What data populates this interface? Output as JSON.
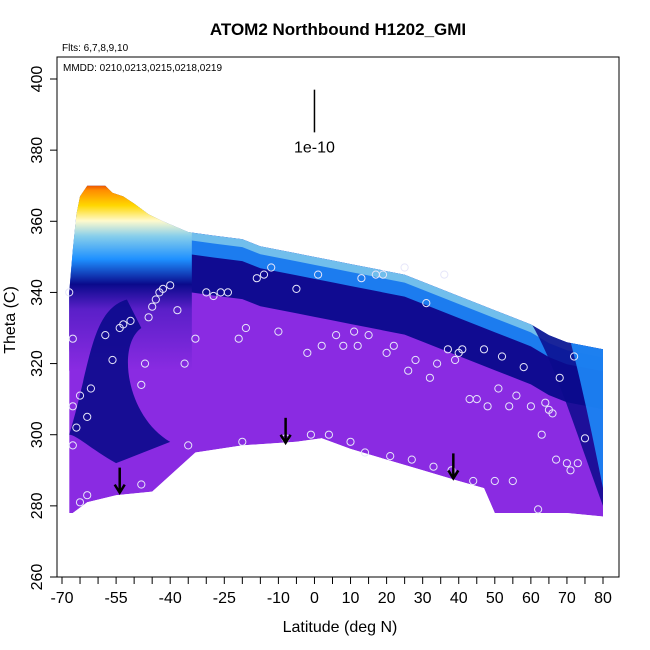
{
  "chart_data": {
    "type": "scatter",
    "title": "ATOM2 Northbound H1202_GMI",
    "flights_label": "Flts: 6,7,8,9,10",
    "dates_label": "MMDD: 0210,0213,0215,0218,0219",
    "xlabel": "Latitude (deg N)",
    "ylabel": "Theta (C)",
    "xlim": [
      -72,
      84
    ],
    "ylim": [
      260,
      405
    ],
    "xticks": [
      -70,
      -65,
      -60,
      -55,
      -50,
      -45,
      -40,
      -35,
      -30,
      -25,
      -20,
      -15,
      -10,
      -5,
      0,
      5,
      10,
      15,
      20,
      25,
      30,
      35,
      40,
      45,
      50,
      55,
      60,
      65,
      70,
      75,
      80
    ],
    "xtick_labels": [
      "-70",
      "-55",
      "-40",
      "-25",
      "-10",
      "0",
      "10",
      "20",
      "30",
      "40",
      "50",
      "60",
      "70",
      "80"
    ],
    "yticks": [
      260,
      280,
      300,
      320,
      340,
      360,
      380,
      400
    ],
    "ytick_labels": [
      "260",
      "280",
      "300",
      "320",
      "340",
      "360",
      "380",
      "400"
    ],
    "scale_bar_label": "1e-10",
    "scale_bar": {
      "x": 0,
      "y_top": 397,
      "y_bottom": 385
    },
    "arrows": [
      {
        "lat": -54,
        "theta": 284
      },
      {
        "lat": -8,
        "theta": 298
      },
      {
        "lat": 38.5,
        "theta": 288
      }
    ],
    "field_boundary": {
      "top": [
        [
          -68,
          340
        ],
        [
          -67,
          352
        ],
        [
          -66,
          362
        ],
        [
          -65,
          367
        ],
        [
          -63,
          370
        ],
        [
          -58,
          370
        ],
        [
          -56,
          368
        ],
        [
          -53,
          367
        ],
        [
          -50,
          365
        ],
        [
          -46,
          362
        ],
        [
          -42,
          360
        ],
        [
          -35,
          357
        ],
        [
          -28,
          356
        ],
        [
          -20,
          355
        ],
        [
          -15,
          353
        ],
        [
          -10,
          352
        ],
        [
          -5,
          351
        ],
        [
          0,
          350
        ],
        [
          5,
          349
        ],
        [
          10,
          348
        ],
        [
          15,
          347
        ],
        [
          20,
          346
        ],
        [
          25,
          345
        ],
        [
          30,
          343
        ],
        [
          35,
          341
        ],
        [
          40,
          339
        ],
        [
          45,
          337
        ],
        [
          50,
          335
        ],
        [
          55,
          333
        ],
        [
          60,
          331
        ],
        [
          65,
          328
        ],
        [
          70,
          326
        ],
        [
          75,
          325
        ],
        [
          80,
          324
        ]
      ],
      "bottom": [
        [
          80,
          277
        ],
        [
          70,
          278
        ],
        [
          60,
          278
        ],
        [
          50,
          278
        ],
        [
          47,
          285
        ],
        [
          40,
          287
        ],
        [
          30,
          290
        ],
        [
          20,
          293
        ],
        [
          10,
          296
        ],
        [
          2,
          299
        ],
        [
          -5,
          298
        ],
        [
          -20,
          297
        ],
        [
          -33,
          295
        ],
        [
          -45,
          284
        ],
        [
          -55,
          283
        ],
        [
          -63,
          281
        ],
        [
          -67,
          278
        ],
        [
          -68,
          278
        ]
      ]
    },
    "points": [
      [
        -68,
        340
      ],
      [
        -67,
        327
      ],
      [
        -67,
        308
      ],
      [
        -67,
        297
      ],
      [
        -66,
        302
      ],
      [
        -65,
        311
      ],
      [
        -65,
        281
      ],
      [
        -63,
        305
      ],
      [
        -63,
        283
      ],
      [
        -62,
        313
      ],
      [
        -58,
        328
      ],
      [
        -56,
        321
      ],
      [
        -54,
        330
      ],
      [
        -53,
        331
      ],
      [
        -51,
        332
      ],
      [
        -48,
        314
      ],
      [
        -48,
        286
      ],
      [
        -47,
        320
      ],
      [
        -46,
        333
      ],
      [
        -45,
        336
      ],
      [
        -44,
        338
      ],
      [
        -43,
        340
      ],
      [
        -42,
        341
      ],
      [
        -40,
        342
      ],
      [
        -38,
        335
      ],
      [
        -36,
        320
      ],
      [
        -35,
        297
      ],
      [
        -33,
        327
      ],
      [
        -30,
        340
      ],
      [
        -28,
        339
      ],
      [
        -26,
        340
      ],
      [
        -24,
        340
      ],
      [
        -21,
        327
      ],
      [
        -20,
        298
      ],
      [
        -19,
        330
      ],
      [
        -16,
        344
      ],
      [
        -14,
        345
      ],
      [
        -12,
        347
      ],
      [
        -10,
        329
      ],
      [
        -8,
        299
      ],
      [
        -5,
        341
      ],
      [
        -2,
        323
      ],
      [
        -1,
        300
      ],
      [
        1,
        345
      ],
      [
        2,
        325
      ],
      [
        4,
        300
      ],
      [
        6,
        328
      ],
      [
        8,
        325
      ],
      [
        10,
        298
      ],
      [
        11,
        329
      ],
      [
        12,
        325
      ],
      [
        13,
        344
      ],
      [
        14,
        295
      ],
      [
        15,
        328
      ],
      [
        17,
        345
      ],
      [
        19,
        345
      ],
      [
        20,
        323
      ],
      [
        21,
        294
      ],
      [
        22,
        325
      ],
      [
        25,
        347
      ],
      [
        26,
        318
      ],
      [
        27,
        293
      ],
      [
        28,
        321
      ],
      [
        31,
        337
      ],
      [
        32,
        316
      ],
      [
        33,
        291
      ],
      [
        34,
        320
      ],
      [
        36,
        345
      ],
      [
        37,
        324
      ],
      [
        38,
        290
      ],
      [
        39,
        321
      ],
      [
        40,
        323
      ],
      [
        41,
        324
      ],
      [
        43,
        310
      ],
      [
        44,
        287
      ],
      [
        45,
        310
      ],
      [
        47,
        324
      ],
      [
        48,
        308
      ],
      [
        50,
        287
      ],
      [
        51,
        313
      ],
      [
        52,
        322
      ],
      [
        54,
        308
      ],
      [
        55,
        287
      ],
      [
        56,
        311
      ],
      [
        58,
        319
      ],
      [
        60,
        308
      ],
      [
        62,
        279
      ],
      [
        63,
        300
      ],
      [
        64,
        309
      ],
      [
        65,
        307
      ],
      [
        66,
        306
      ],
      [
        67,
        293
      ],
      [
        68,
        316
      ],
      [
        70,
        292
      ],
      [
        71,
        290
      ],
      [
        72,
        322
      ],
      [
        73,
        292
      ],
      [
        75,
        299
      ]
    ]
  },
  "colors": {
    "field_base": "#8a2be2",
    "dark_blue": "#0a0a8c",
    "mid_blue": "#1e90ff",
    "cyan": "#87ceeb",
    "pale": "#fffacd",
    "yellow": "#ffd700",
    "orange": "#ff8c00",
    "red": "#cc0000",
    "point_stroke": "#e6e6fa"
  }
}
